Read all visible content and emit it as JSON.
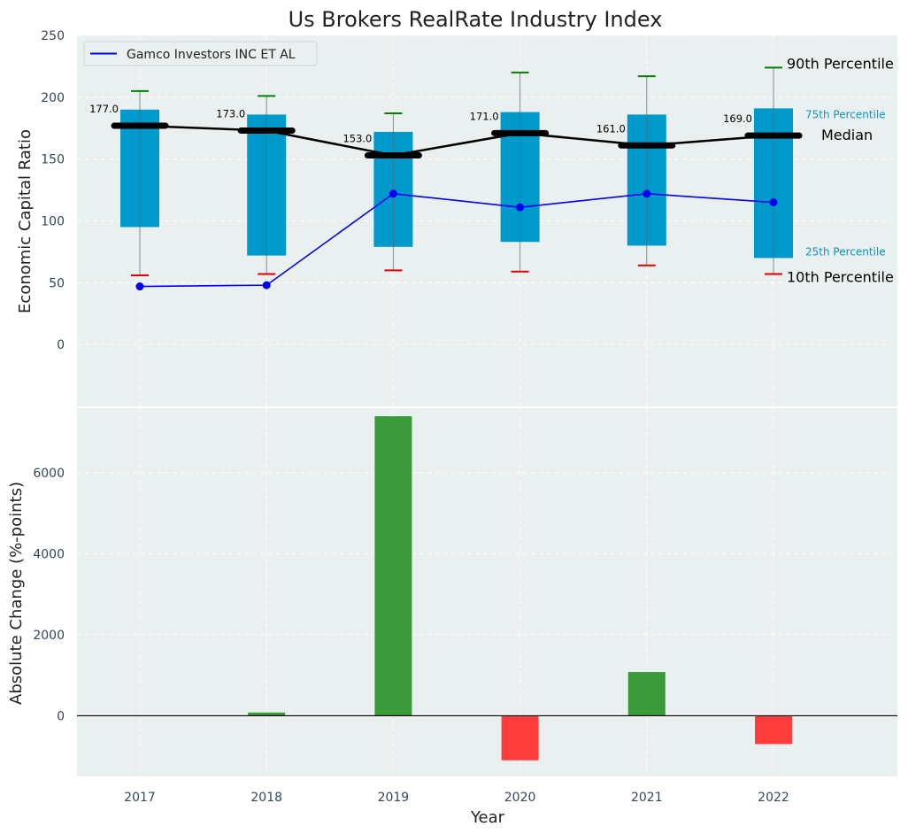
{
  "chart_data": [
    {
      "type": "box",
      "title": "Us Brokers RealRate Industry Index",
      "ylabel": "Economic Capital Ratio",
      "ylim": [
        -50,
        250
      ],
      "yticks": [
        0,
        50,
        100,
        150,
        200,
        250
      ],
      "categories": [
        "2017",
        "2018",
        "2019",
        "2020",
        "2021",
        "2022"
      ],
      "p10": [
        56,
        57,
        60,
        59,
        64,
        57
      ],
      "p25": [
        95,
        72,
        79,
        83,
        80,
        70
      ],
      "median": [
        177,
        173,
        153,
        171,
        161,
        169
      ],
      "median_labels": [
        "177.0",
        "173.0",
        "153.0",
        "171.0",
        "161.0",
        "169.0"
      ],
      "p75": [
        190,
        186,
        172,
        188,
        186,
        191
      ],
      "p90": [
        205,
        201,
        187,
        220,
        217,
        224
      ],
      "company_series": {
        "name": "Gamco Investors INC ET AL",
        "values": [
          47,
          48,
          122,
          111,
          122,
          115
        ],
        "color": "#0000ee"
      },
      "legend": "top-left",
      "annotations": {
        "p90": "90th Percentile",
        "p75": "75th Percentile",
        "median": "Median",
        "p25": "25th Percentile",
        "p10": "10th Percentile"
      },
      "colors": {
        "box": "#0099cc",
        "median": "#000000",
        "p90_cap": "#008000",
        "p10_cap": "#dd0000",
        "background": "#eaeff0"
      }
    },
    {
      "type": "bar",
      "xlabel": "Year",
      "ylabel": "Absolute Change (%-points)",
      "ylim": [
        -1500,
        7600
      ],
      "yticks": [
        0,
        2000,
        4000,
        6000
      ],
      "categories": [
        "2017",
        "2018",
        "2019",
        "2020",
        "2021",
        "2022"
      ],
      "values": [
        0,
        80,
        7400,
        -1100,
        1080,
        -700
      ],
      "colors": {
        "positive": "#3a9a3a",
        "negative": "#ff3b3b"
      }
    }
  ]
}
